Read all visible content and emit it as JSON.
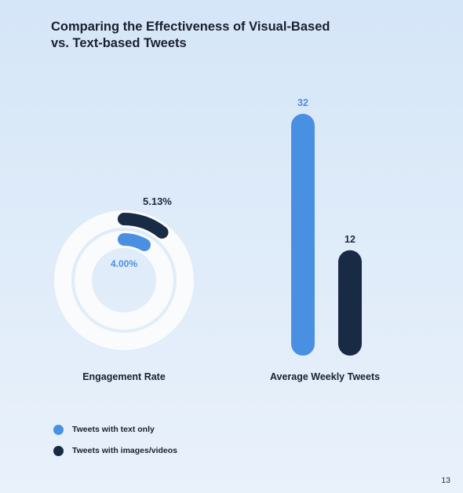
{
  "title_lines": [
    "Comparing the Effectiveness of Visual-Based",
    "vs. Text-based Tweets"
  ],
  "colors": {
    "text_only": "#4a90e2",
    "images_videos": "#192a45",
    "track": "#fafbfd"
  },
  "chart_data": [
    {
      "type": "radial-bar",
      "xlabel": "Engagement Rate",
      "max": 100,
      "series": [
        {
          "name": "Tweets with images/videos",
          "value": 5.13,
          "label": "5.13%"
        },
        {
          "name": "Tweets with text only",
          "value": 4.0,
          "label": "4.00%"
        }
      ]
    },
    {
      "type": "bar",
      "xlabel": "Average Weekly Tweets",
      "ylim": [
        0,
        32
      ],
      "series": [
        {
          "name": "Tweets with text only",
          "value": 32,
          "label": "32"
        },
        {
          "name": "Tweets with images/videos",
          "value": 12,
          "label": "12"
        }
      ]
    }
  ],
  "legend": [
    {
      "label": "Tweets with text only",
      "color": "#4a90e2"
    },
    {
      "label": "Tweets with images/videos",
      "color": "#192a45"
    }
  ],
  "page_number": "13"
}
